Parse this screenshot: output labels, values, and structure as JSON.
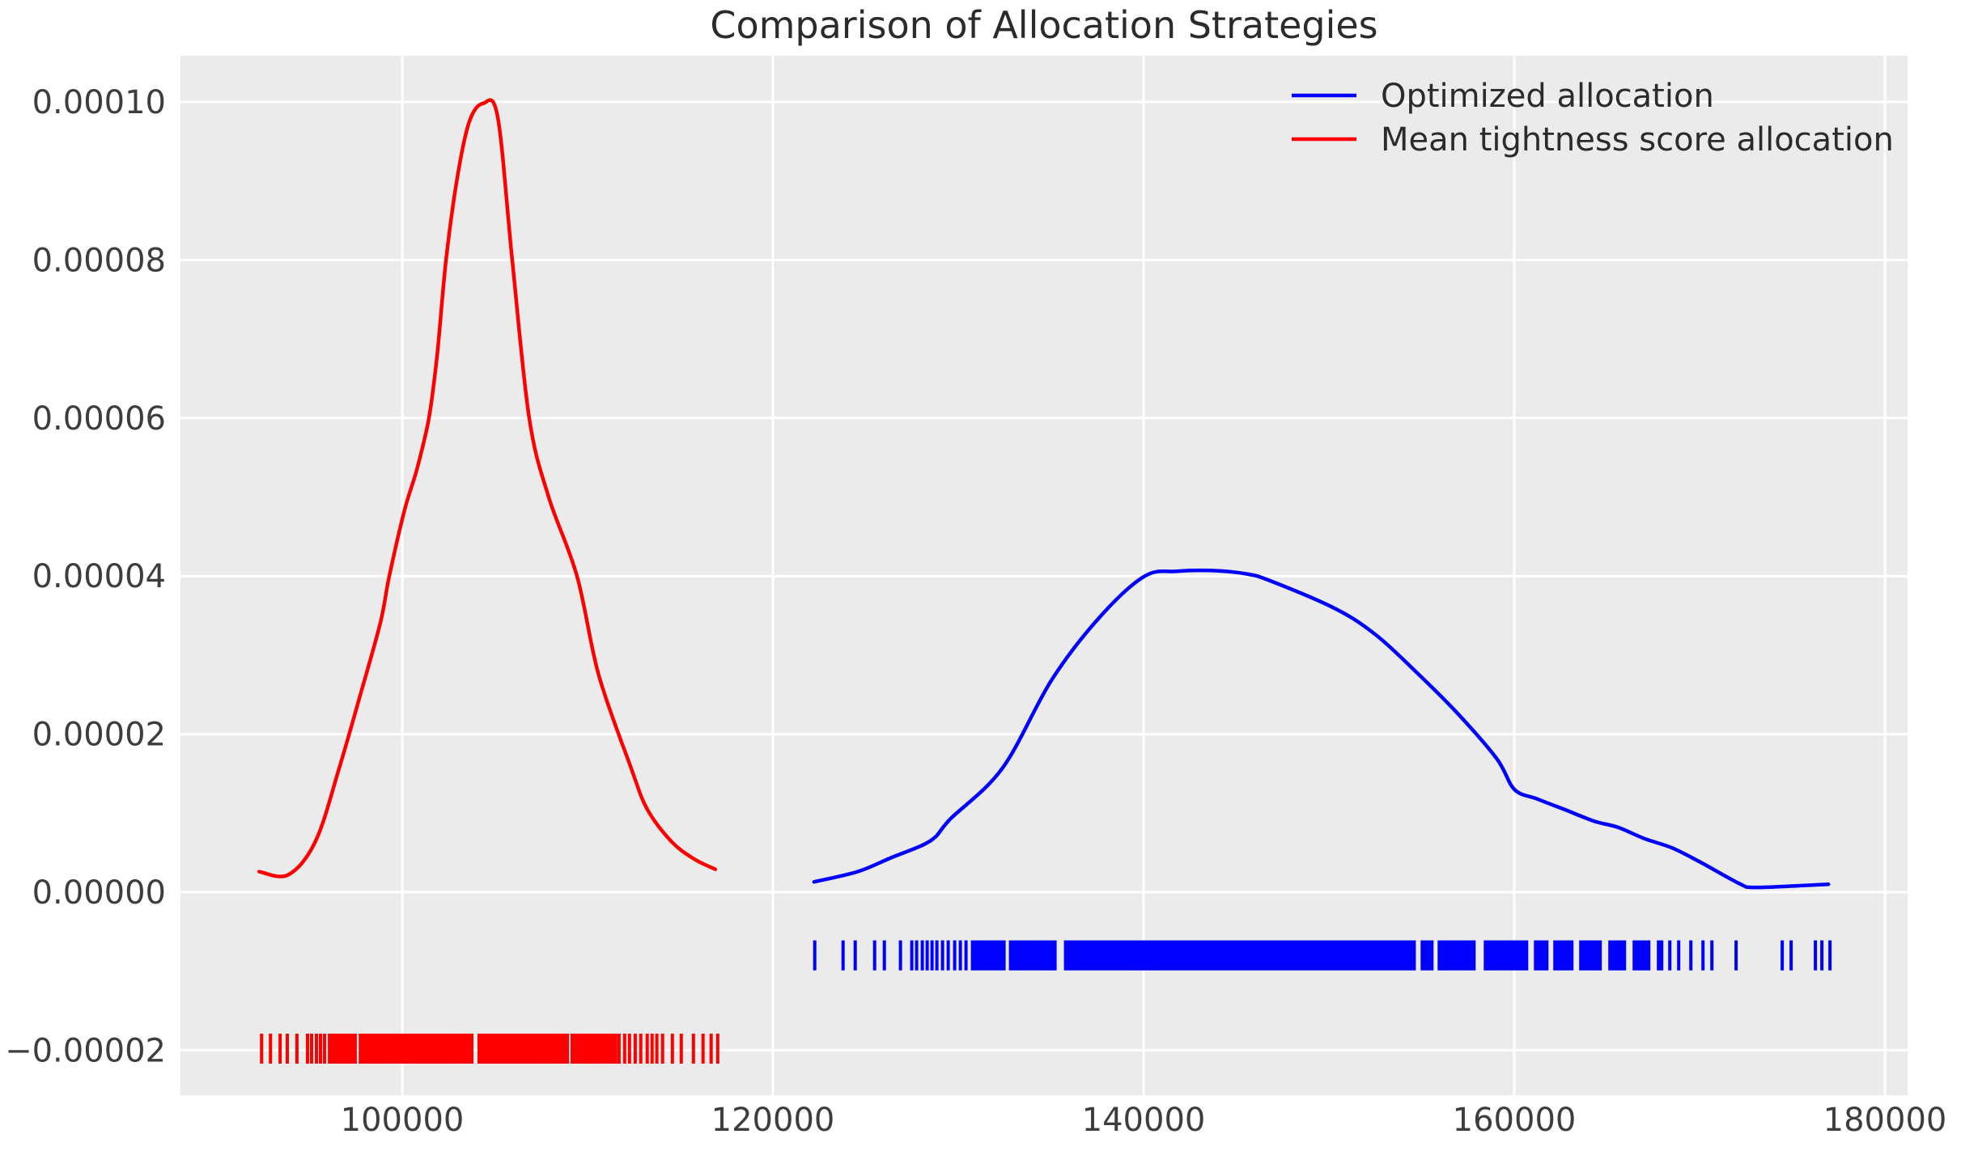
{
  "title": "Comparison of Allocation Strategies",
  "chart_data": {
    "type": "line",
    "subtype": "kde-density-with-rug",
    "title": "Comparison of Allocation Strategies",
    "xlabel": "",
    "ylabel": "",
    "grid": true,
    "background_color": "#EBEBEB",
    "grid_color": "#FFFFFF",
    "legend": {
      "position": "upper right",
      "frame": false
    },
    "xlim": [
      88035,
      181222
    ],
    "ylim": [
      -2.569e-05,
      0.00010583
    ],
    "x_ticks": [
      {
        "value": 100000,
        "label": "100000"
      },
      {
        "value": 120000,
        "label": "120000"
      },
      {
        "value": 140000,
        "label": "140000"
      },
      {
        "value": 160000,
        "label": "160000"
      },
      {
        "value": 180000,
        "label": "180000"
      }
    ],
    "y_ticks": [
      {
        "value": 0.0001,
        "label": "0.00010"
      },
      {
        "value": 8e-05,
        "label": "0.00008"
      },
      {
        "value": 6e-05,
        "label": "0.00006"
      },
      {
        "value": 4e-05,
        "label": "0.00004"
      },
      {
        "value": 2e-05,
        "label": "0.00002"
      },
      {
        "value": 0.0,
        "label": "0.00000"
      },
      {
        "value": -2e-05,
        "label": "−0.00002"
      }
    ],
    "series": [
      {
        "name": "Optimized allocation",
        "color": "#0000FF",
        "peak": {
          "x": 143560,
          "y": 4.07e-05
        },
        "points": [
          [
            122220,
            1.3e-06
          ],
          [
            124570,
            2.6e-06
          ],
          [
            126320,
            4.3e-06
          ],
          [
            128500,
            6.5e-06
          ],
          [
            129590,
            9.3e-06
          ],
          [
            132390,
            1.57e-05
          ],
          [
            135050,
            2.69e-05
          ],
          [
            137670,
            3.49e-05
          ],
          [
            140070,
            4e-05
          ],
          [
            141800,
            4.06e-05
          ],
          [
            143560,
            4.07e-05
          ],
          [
            145500,
            4.03e-05
          ],
          [
            146830,
            3.94e-05
          ],
          [
            150320,
            3.59e-05
          ],
          [
            152510,
            3.26e-05
          ],
          [
            154690,
            2.79e-05
          ],
          [
            156870,
            2.28e-05
          ],
          [
            159050,
            1.69e-05
          ],
          [
            160010,
            1.3e-05
          ],
          [
            161230,
            1.18e-05
          ],
          [
            162670,
            1.05e-05
          ],
          [
            164290,
            9e-06
          ],
          [
            165600,
            8.2e-06
          ],
          [
            167000,
            6.8e-06
          ],
          [
            168520,
            5.6e-06
          ],
          [
            169960,
            3.9e-06
          ],
          [
            172140,
            1.1e-06
          ],
          [
            172890,
            6e-07
          ],
          [
            175200,
            8e-07
          ],
          [
            176950,
            1e-06
          ]
        ],
        "rug": {
          "y_center": -8e-06,
          "half_height": 1.9e-06,
          "solid_ranges": [
            [
              130682,
              132558
            ],
            [
              132733,
              135308
            ],
            [
              135701,
              154687
            ],
            [
              154949,
              155647
            ],
            [
              155865,
              157916
            ],
            [
              158353,
              160753
            ],
            [
              161059,
              161844
            ],
            [
              162106,
              163197
            ],
            [
              163503,
              164725
            ],
            [
              165074,
              166034
            ],
            [
              166383,
              167343
            ],
            [
              167692,
              168042
            ]
          ],
          "ticks": [
            122258,
            123786,
            124440,
            125488,
            126011,
            126884,
            127495,
            127757,
            128062,
            128324,
            128586,
            128848,
            129154,
            129459,
            129808,
            130114,
            130419,
            168391,
            168871,
            169526,
            170181,
            170661,
            171970,
            174458,
            174938,
            176247,
            176596,
            177033
          ]
        }
      },
      {
        "name": "Mean tightness score allocation",
        "color": "#FF0000",
        "peak": {
          "x": 104360,
          "y": 9.98e-05
        },
        "points": [
          [
            92280,
            2.6e-06
          ],
          [
            93850,
            2.2e-06
          ],
          [
            95330,
            6.5e-06
          ],
          [
            96600,
            1.57e-05
          ],
          [
            97730,
            2.49e-05
          ],
          [
            98820,
            3.41e-05
          ],
          [
            99300,
            4e-05
          ],
          [
            100130,
            4.84e-05
          ],
          [
            100790,
            5.35e-05
          ],
          [
            101440,
            6e-05
          ],
          [
            101880,
            6.79e-05
          ],
          [
            102360,
            7.99e-05
          ],
          [
            102970,
            9.04e-05
          ],
          [
            103620,
            9.75e-05
          ],
          [
            104360,
            9.98e-05
          ],
          [
            105150,
            9.81e-05
          ],
          [
            105940,
            7.99e-05
          ],
          [
            106850,
            6e-05
          ],
          [
            107900,
            5e-05
          ],
          [
            109430,
            4e-05
          ],
          [
            110600,
            2.75e-05
          ],
          [
            112350,
            1.57e-05
          ],
          [
            113220,
            1.05e-05
          ],
          [
            114530,
            6.4e-06
          ],
          [
            115750,
            4.2e-06
          ],
          [
            116890,
            2.9e-06
          ]
        ],
        "rug": {
          "y_center": -1.98e-05,
          "half_height": 1.9e-06,
          "solid_ranges": [
            [
              95985,
              97550
            ],
            [
              97650,
              103840
            ],
            [
              104060,
              109000
            ],
            [
              109080,
              111610
            ]
          ],
          "ticks": [
            92410,
            92890,
            93410,
            93800,
            94320,
            94890,
            95110,
            95370,
            95590,
            95810,
            111700,
            112000,
            112260,
            112570,
            112870,
            113220,
            113480,
            113740,
            114050,
            114575,
            115055,
            115710,
            116230,
            116670,
            117020
          ]
        }
      }
    ]
  }
}
